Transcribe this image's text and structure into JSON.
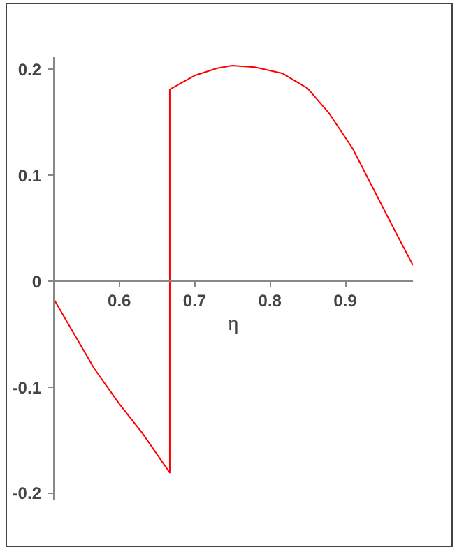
{
  "chart_data": {
    "type": "line",
    "xlabel": "η",
    "x": [
      0.513,
      0.54,
      0.567,
      0.6,
      0.63,
      0.667,
      0.667,
      0.7,
      0.73,
      0.75,
      0.78,
      0.817,
      0.85,
      0.879,
      0.91,
      0.941,
      0.97,
      0.99
    ],
    "series": [
      {
        "color": "#ff0000",
        "values": [
          -0.017,
          -0.05,
          -0.083,
          -0.116,
          -0.143,
          -0.181,
          0.181,
          0.194,
          0.201,
          0.2035,
          0.202,
          0.196,
          0.182,
          0.158,
          0.125,
          0.082,
          0.042,
          0.015
        ]
      }
    ],
    "xlim": [
      0.513,
      0.99
    ],
    "ylim": [
      -0.207,
      0.212
    ],
    "xticks": [
      0.6,
      0.7,
      0.8,
      0.9
    ],
    "yticks": [
      -0.2,
      -0.1,
      0,
      0.1,
      0.2
    ],
    "grid": false,
    "marker": "none",
    "line_style": "solid"
  }
}
